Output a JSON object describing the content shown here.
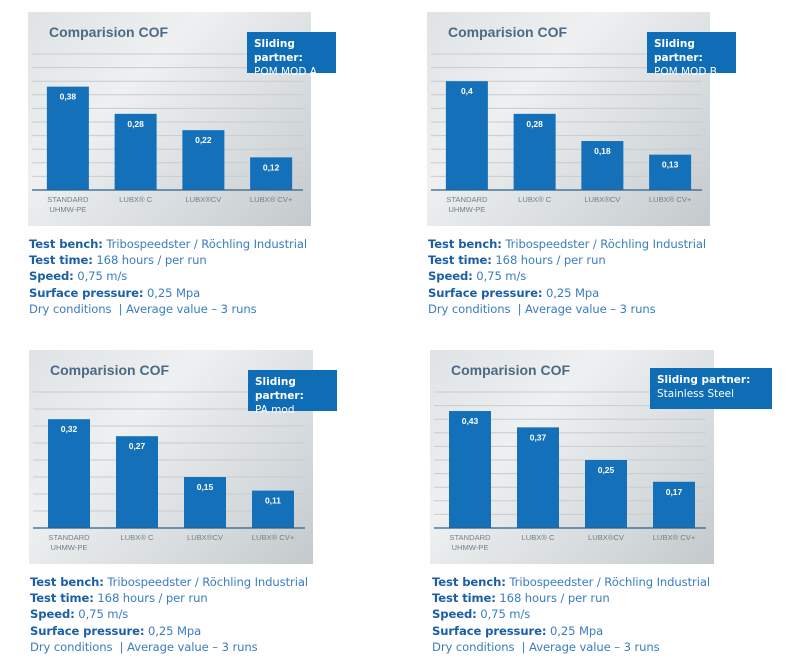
{
  "chart_data": [
    {
      "type": "bar",
      "title": "Comparision COF",
      "partner_label": "Sliding partner:",
      "partner_value": "POM MOD A",
      "categories": [
        "STANDARD UHMW-PE",
        "LUBX® C",
        "LUBX®CV",
        "LUBX® CV+"
      ],
      "category_lines": [
        [
          "STANDARD",
          "UHMW-PE"
        ],
        [
          "LUBX® C"
        ],
        [
          "LUBX®CV"
        ],
        [
          "LUBX® CV+"
        ]
      ],
      "values": [
        0.38,
        0.28,
        0.22,
        0.12
      ],
      "value_labels": [
        "0,38",
        "0,28",
        "0,22",
        "0,12"
      ],
      "ylim": [
        0,
        0.5
      ],
      "grid": true,
      "bar_color": "#1470b8"
    },
    {
      "type": "bar",
      "title": "Comparision COF",
      "partner_label": "Sliding partner:",
      "partner_value": "POM MOD B",
      "categories": [
        "STANDARD UHMW-PE",
        "LUBX® C",
        "LUBX®CV",
        "LUBX® CV+"
      ],
      "category_lines": [
        [
          "STANDARD",
          "UHMW-PE"
        ],
        [
          "LUBX® C"
        ],
        [
          "LUBX®CV"
        ],
        [
          "LUBX® CV+"
        ]
      ],
      "values": [
        0.4,
        0.28,
        0.18,
        0.13
      ],
      "value_labels": [
        "0,4",
        "0,28",
        "0,18",
        "0,13"
      ],
      "ylim": [
        0,
        0.5
      ],
      "grid": true,
      "bar_color": "#1470b8"
    },
    {
      "type": "bar",
      "title": "Comparision COF",
      "partner_label": "Sliding partner:",
      "partner_value": "PA mod",
      "categories": [
        "STANDARD UHMW-PE",
        "LUBX® C",
        "LUBX®CV",
        "LUBX® CV+"
      ],
      "category_lines": [
        [
          "STANDARD",
          "UHMW-PE"
        ],
        [
          "LUBX® C"
        ],
        [
          "LUBX®CV"
        ],
        [
          "LUBX® CV+"
        ]
      ],
      "values": [
        0.32,
        0.27,
        0.15,
        0.11
      ],
      "value_labels": [
        "0,32",
        "0,27",
        "0,15",
        "0,11"
      ],
      "ylim": [
        0,
        0.4
      ],
      "grid": true,
      "bar_color": "#1470b8"
    },
    {
      "type": "bar",
      "title": "Comparision COF",
      "partner_label": "Sliding partner:",
      "partner_value": "Stainless Steel",
      "categories": [
        "STANDARD UHMW-PE",
        "LUBX® C",
        "LUBX®CV",
        "LUBX® CV+"
      ],
      "category_lines": [
        [
          "STANDARD",
          "UHMW-PE"
        ],
        [
          "LUBX® C"
        ],
        [
          "LUBX®CV"
        ],
        [
          "LUBX® CV+"
        ]
      ],
      "values": [
        0.43,
        0.37,
        0.25,
        0.17
      ],
      "value_labels": [
        "0,43",
        "0,37",
        "0,25",
        "0,17"
      ],
      "ylim": [
        0,
        0.5
      ],
      "grid": true,
      "bar_color": "#1470b8"
    }
  ],
  "info": {
    "test_bench_key": "Test bench:",
    "test_bench_value": " Tribospeedster / Röchling Industrial",
    "test_time_key": "Test time:",
    "test_time_value": " 168 hours / per run",
    "speed_key": "Speed:",
    "speed_value": " 0,75 m/s",
    "pressure_key": "Surface pressure:",
    "pressure_value": " 0,25 Mpa",
    "conditions": "Dry conditions  | Average value – 3 runs"
  },
  "colors": {
    "bar": "#1470b8",
    "partner_box": "#0f6db5",
    "title": "#4a6a85",
    "info_key": "#1a5fa6",
    "info_value": "#3a7dc0"
  }
}
